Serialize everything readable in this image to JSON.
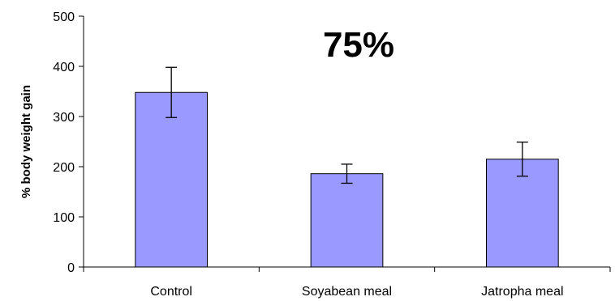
{
  "chart_data": {
    "type": "bar",
    "categories": [
      "Control",
      "Soyabean meal",
      "Jatropha meal"
    ],
    "values": [
      348,
      186,
      215
    ],
    "error": [
      50,
      19,
      34
    ],
    "ylabel": "% body weight gain",
    "xlabel": "",
    "ylim": [
      0,
      500
    ],
    "yticks": [
      0,
      100,
      200,
      300,
      400,
      500
    ],
    "annotation": "75%",
    "bar_color": "#9999ff",
    "grid": false,
    "legend": "none"
  }
}
